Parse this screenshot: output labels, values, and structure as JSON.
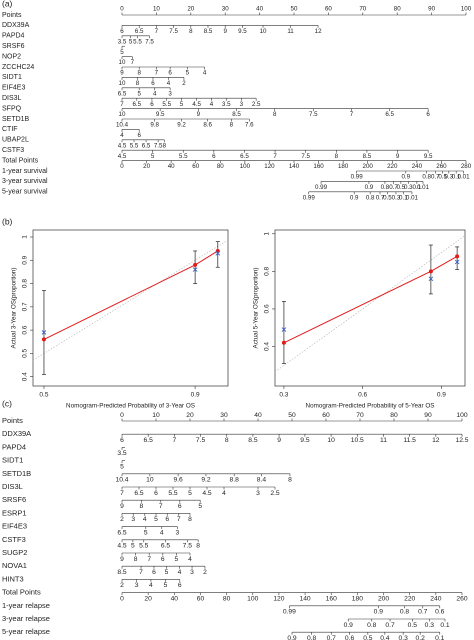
{
  "chart_data": [
    {
      "type": "nomogram",
      "panel_label": "(a)",
      "xlim": [
        0,
        100
      ],
      "x2lim": [
        0,
        280
      ],
      "rows": [
        {
          "label": "Points",
          "ticks": [
            0,
            10,
            20,
            30,
            40,
            50,
            60,
            70,
            80,
            90,
            100
          ]
        },
        {
          "label": "DDX39A",
          "ticks": [
            6,
            6.5,
            7,
            7.5,
            8,
            8.5,
            9,
            9.5,
            10,
            11,
            12
          ],
          "positions": [
            0,
            5,
            10,
            15,
            20,
            25,
            30,
            35,
            41,
            49,
            57
          ]
        },
        {
          "label": "PAPD4",
          "ticks": [
            3.5,
            5,
            5.5,
            7.5
          ],
          "positions": [
            0,
            2.5,
            4.5,
            8
          ]
        },
        {
          "label": "SRSF6",
          "ticks": [
            5
          ],
          "positions": [
            0
          ]
        },
        {
          "label": "NOP2",
          "ticks": [
            10,
            7
          ],
          "positions": [
            0,
            3
          ]
        },
        {
          "label": "ZCCHC24",
          "ticks": [
            9,
            8,
            7,
            6,
            5,
            4
          ],
          "positions": [
            0,
            5,
            10,
            14,
            19,
            24
          ]
        },
        {
          "label": "SIDT1",
          "ticks": [
            10,
            8,
            6,
            4,
            2
          ],
          "positions": [
            0,
            4.5,
            9,
            13.5,
            18
          ]
        },
        {
          "label": "EIF4E3",
          "ticks": [
            6.5,
            5,
            4,
            3
          ],
          "positions": [
            0,
            5,
            9.5,
            14
          ]
        },
        {
          "label": "DIS3L",
          "ticks": [
            7,
            6.5,
            6,
            5.5,
            5,
            4.5,
            4,
            3.5,
            3,
            2.5
          ],
          "positions": [
            0,
            4.3,
            8.7,
            13,
            17.3,
            21.7,
            26,
            30.3,
            34.7,
            39
          ]
        },
        {
          "label": "SFPQ",
          "ticks": [
            10,
            9.5,
            9,
            8.5,
            8,
            7.5,
            7,
            6.5,
            6
          ],
          "positions": [
            0,
            11.1,
            22.2,
            33.3,
            44.4,
            55.6,
            66.7,
            77.8,
            89
          ]
        },
        {
          "label": "SETD1B",
          "ticks": [
            10.4,
            9.8,
            9.2,
            8.6,
            8,
            7.6
          ],
          "positions": [
            0,
            9.5,
            17.3,
            24.9,
            31.8,
            37
          ]
        },
        {
          "label": "CTIF",
          "ticks": [
            4,
            6
          ],
          "positions": [
            0,
            5
          ]
        },
        {
          "label": "UBAP2L",
          "ticks": [
            4.5,
            5.5,
            6.5,
            7.5,
            8
          ],
          "positions": [
            0,
            3.5,
            7,
            10.5,
            12.3
          ]
        },
        {
          "label": "CSTF3",
          "ticks": [
            4.5,
            5,
            5.5,
            6,
            6.5,
            7,
            7.5,
            8,
            8.5,
            9,
            9.5
          ],
          "positions": [
            0,
            8.9,
            17.8,
            26.7,
            35.6,
            44.5,
            53.4,
            62.3,
            71.2,
            80.1,
            89
          ]
        },
        {
          "label": "Total Points",
          "axis": "total",
          "ticks": [
            0,
            20,
            40,
            60,
            80,
            100,
            120,
            140,
            160,
            180,
            200,
            220,
            240,
            260,
            280
          ]
        },
        {
          "label": "1-year survival",
          "axis": "total",
          "ticks": [
            0.99,
            0.9,
            0.8,
            0.7,
            0.5,
            0.3,
            0.1,
            0.01
          ],
          "positions": [
            191,
            231,
            248,
            255,
            261,
            266,
            272,
            278
          ]
        },
        {
          "label": "3-year survival",
          "axis": "total",
          "ticks": [
            0.99,
            0.9,
            0.8,
            0.7,
            0.5,
            0.3,
            0.1,
            0.01
          ],
          "positions": [
            162,
            201,
            214,
            221,
            227,
            233,
            240,
            245
          ]
        },
        {
          "label": "5-year survival",
          "axis": "total",
          "ticks": [
            0.99,
            0.9,
            0.8,
            0.7,
            0.5,
            0.3,
            0.1,
            0.01
          ],
          "positions": [
            152,
            189,
            202,
            210,
            216,
            223,
            229,
            236
          ]
        }
      ]
    },
    {
      "type": "calibration",
      "panel_label": "(b)",
      "ylabel": "Actual 3-Year OS(proportion)",
      "xlabel": "Nomogram-Predicted Probability of 3-Year OS",
      "xlim": [
        0.471,
        0.987
      ],
      "ylim": [
        0.36,
        1.03
      ],
      "xticks": [
        0.5,
        0.9
      ],
      "yticks": [
        0.4,
        0.5,
        0.6,
        0.7,
        0.8,
        0.9,
        1.0
      ],
      "x": [
        0.5,
        0.9,
        0.96
      ],
      "observed": [
        0.56,
        0.88,
        0.94
      ],
      "lower": [
        0.41,
        0.8,
        0.87
      ],
      "upper": [
        0.77,
        0.94,
        0.98
      ],
      "corrected": [
        0.59,
        0.86,
        0.93
      ],
      "color": "#e41a1c",
      "corrected_color": "#3a62c4"
    },
    {
      "type": "calibration",
      "ylabel": "Actual 5-Year OS(proportion)",
      "xlabel": "Nomogram-Predicted Probability of 5-Year OS",
      "xlim": [
        0.266,
        0.99
      ],
      "ylim": [
        0.19,
        1.02
      ],
      "xticks": [
        0.3,
        0.6,
        0.9
      ],
      "yticks": [
        0.4,
        0.6,
        0.8,
        1.0
      ],
      "x": [
        0.3,
        0.86,
        0.96
      ],
      "observed": [
        0.42,
        0.8,
        0.88
      ],
      "lower": [
        0.31,
        0.68,
        0.81
      ],
      "upper": [
        0.64,
        0.94,
        0.93
      ],
      "corrected": [
        0.49,
        0.76,
        0.85
      ],
      "color": "#e41a1c",
      "corrected_color": "#3a62c4"
    },
    {
      "type": "nomogram",
      "panel_label": "(c)",
      "xlim": [
        0,
        100
      ],
      "x2lim": [
        0,
        260
      ],
      "rows": [
        {
          "label": "Points",
          "ticks": [
            0,
            10,
            20,
            30,
            40,
            50,
            60,
            70,
            80,
            90,
            100
          ]
        },
        {
          "label": "DDX39A",
          "ticks": [
            6,
            6.5,
            7,
            7.5,
            8,
            8.5,
            9,
            9.5,
            10,
            10.5,
            11,
            11.5,
            12,
            12.5
          ],
          "positions": [
            0,
            7.7,
            15.4,
            23.1,
            30.8,
            38.5,
            46.2,
            53.8,
            61.5,
            69.2,
            76.9,
            84.6,
            92.3,
            100
          ]
        },
        {
          "label": "PAPD4",
          "ticks": [
            3.5
          ],
          "positions": [
            0
          ]
        },
        {
          "label": "SIDT1",
          "ticks": [
            5
          ],
          "positions": [
            0
          ]
        },
        {
          "label": "SETD1B",
          "ticks": [
            10.4,
            10,
            9.6,
            9.2,
            8.8,
            8.4,
            8
          ],
          "positions": [
            0,
            8.2,
            16.5,
            24.7,
            33,
            41,
            49.4
          ]
        },
        {
          "label": "DIS3L",
          "ticks": [
            7,
            6.5,
            6,
            5.5,
            5,
            4.5,
            4,
            3,
            2.5
          ],
          "positions": [
            0,
            5,
            10,
            15,
            20,
            25,
            30,
            40,
            45
          ]
        },
        {
          "label": "SRSF6",
          "ticks": [
            9,
            8,
            7,
            6,
            5
          ],
          "positions": [
            0,
            5.7,
            11.4,
            17,
            23
          ]
        },
        {
          "label": "ESRP1",
          "ticks": [
            2,
            3,
            4,
            5,
            6,
            7,
            8
          ],
          "positions": [
            0,
            3.3,
            6.7,
            10,
            13.3,
            16.7,
            20
          ]
        },
        {
          "label": "EIF4E3",
          "ticks": [
            6.5,
            5,
            4,
            3
          ],
          "positions": [
            0,
            7,
            11.7,
            16.3
          ]
        },
        {
          "label": "CSTF3",
          "ticks": [
            4.5,
            5,
            5.5,
            6.5,
            7.5,
            8
          ],
          "positions": [
            0,
            3.2,
            6.4,
            12.8,
            19.2,
            22.4
          ]
        },
        {
          "label": "SUGP2",
          "ticks": [
            9,
            8,
            7,
            6,
            5,
            4
          ],
          "positions": [
            0,
            4,
            8,
            12,
            16,
            20
          ]
        },
        {
          "label": "NOVA1",
          "ticks": [
            8.5,
            7,
            6,
            5,
            4,
            3,
            2
          ],
          "positions": [
            0,
            5.6,
            9.4,
            13.1,
            16.9,
            20.6,
            24.4
          ]
        },
        {
          "label": "HINT3",
          "ticks": [
            2,
            3,
            4,
            5,
            6
          ],
          "positions": [
            0,
            4.3,
            8.5,
            12.8,
            17
          ]
        },
        {
          "label": "Total Points",
          "axis": "total",
          "ticks": [
            0,
            20,
            40,
            60,
            80,
            100,
            120,
            140,
            160,
            180,
            200,
            220,
            240,
            260
          ]
        },
        {
          "label": "1-year relapse",
          "axis": "total",
          "ticks": [
            0.99,
            0.9,
            0.8,
            0.7,
            0.6
          ],
          "positions": [
            128,
            196,
            216,
            230,
            243
          ]
        },
        {
          "label": "3-year relapse",
          "axis": "total",
          "ticks": [
            0.9,
            0.8,
            0.7,
            0.5,
            0.3,
            0.1
          ],
          "positions": [
            173,
            191,
            205,
            222,
            235,
            247
          ]
        },
        {
          "label": "5-year relapse",
          "axis": "total",
          "ticks": [
            0.9,
            0.8,
            0.7,
            0.6,
            0.5,
            0.4,
            0.3,
            0.2,
            0.1
          ],
          "positions": [
            130,
            145,
            160,
            174,
            188,
            201,
            215,
            228,
            243
          ]
        }
      ]
    }
  ]
}
